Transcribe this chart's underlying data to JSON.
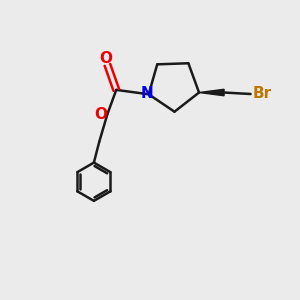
{
  "bg_color": "#ebebeb",
  "bond_color": "#1a1a1a",
  "N_color": "#0000ee",
  "O_color": "#ee0000",
  "Br_color": "#bb7700",
  "lw": 1.8,
  "fig_w": 3.0,
  "fig_h": 3.0,
  "dpi": 100,
  "xlim": [
    0,
    10
  ],
  "ylim": [
    0,
    10
  ]
}
